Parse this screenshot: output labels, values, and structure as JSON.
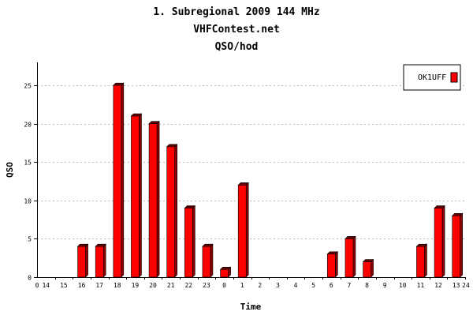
{
  "chart_data": {
    "type": "bar",
    "title_lines": [
      "1. Subregional 2009  144 MHz",
      "VHFContest.net",
      "QSO/hod"
    ],
    "xlabel": "Time",
    "ylabel": "QSO",
    "ylim": [
      0,
      28
    ],
    "y_ticks": [
      0,
      5,
      10,
      15,
      20,
      25
    ],
    "x_axis_start_label": "0",
    "x_axis_end_label": "24",
    "categories": [
      "14",
      "15",
      "16",
      "17",
      "18",
      "19",
      "20",
      "21",
      "22",
      "23",
      "0",
      "1",
      "2",
      "3",
      "4",
      "5",
      "6",
      "7",
      "8",
      "9",
      "10",
      "11",
      "12",
      "13"
    ],
    "series": [
      {
        "name": "OK1UFF",
        "color": "#ff0000",
        "values": [
          0,
          0,
          4,
          4,
          25,
          21,
          20,
          17,
          9,
          4,
          1,
          12,
          0,
          0,
          0,
          0,
          3,
          5,
          2,
          0,
          0,
          4,
          9,
          8
        ]
      }
    ],
    "grid": true,
    "legend_position": "top-right"
  }
}
